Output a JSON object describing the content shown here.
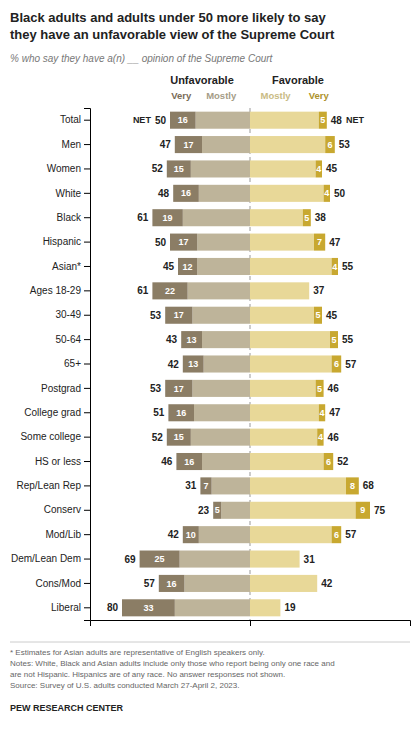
{
  "chart_data": {
    "type": "bar",
    "orientation": "horizontal",
    "stacked": true,
    "title": "Black adults and adults under 50 more likely to say\nthey have an unfavorable view of the Supreme Court",
    "subtitle": "% who say they have a(n) __ opinion of the Supreme Court",
    "annotations": [
      "Unfavorable",
      "Favorable"
    ],
    "categories": [
      "Total",
      "Men",
      "Women",
      "White",
      "Black",
      "Hispanic",
      "Asian*",
      "Ages 18-29",
      "30-49",
      "50-64",
      "65+",
      "Postgrad",
      "College grad",
      "Some college",
      "HS or less",
      "Rep/Lean Rep",
      "Conserv",
      "Mod/Lib",
      "Dem/Lean Dem",
      "Cons/Mod",
      "Liberal"
    ],
    "series": [
      {
        "name": "Very",
        "color": "#8B7D65",
        "values": [
          16,
          17,
          15,
          16,
          19,
          17,
          12,
          22,
          17,
          13,
          13,
          17,
          16,
          15,
          16,
          7,
          5,
          10,
          25,
          16,
          33
        ],
        "value_labels": [
          "16",
          "17",
          "15",
          "16",
          "19",
          "17",
          "12",
          "22",
          "17",
          "13",
          "13",
          "17",
          "16",
          "15",
          "16",
          "7",
          "5",
          "10",
          "25",
          "16",
          "33"
        ]
      },
      {
        "name": "Mostly",
        "color": "#BEB49A",
        "values": [
          34,
          30,
          37,
          32,
          42,
          33,
          33,
          39,
          36,
          30,
          29,
          36,
          35,
          37,
          30,
          24,
          18,
          32,
          44,
          41,
          47
        ],
        "value_labels": [
          null,
          null,
          null,
          null,
          null,
          null,
          null,
          null,
          null,
          null,
          null,
          null,
          null,
          null,
          null,
          null,
          null,
          null,
          null,
          null,
          null
        ]
      },
      {
        "name": "Mostly",
        "color": "#E8D898",
        "values": [
          43,
          47,
          41,
          46,
          33,
          40,
          51,
          37,
          40,
          50,
          51,
          41,
          43,
          42,
          46,
          60,
          66,
          51,
          31,
          42,
          19
        ],
        "value_labels": [
          null,
          null,
          null,
          null,
          null,
          null,
          null,
          null,
          null,
          null,
          null,
          null,
          null,
          null,
          null,
          null,
          null,
          null,
          null,
          null,
          null
        ]
      },
      {
        "name": "Very",
        "color": "#C8A830",
        "values": [
          5,
          6,
          4,
          4,
          5,
          7,
          4,
          0,
          5,
          5,
          6,
          5,
          4,
          4,
          6,
          8,
          9,
          6,
          0,
          0,
          0
        ],
        "value_labels": [
          "5",
          "6",
          "4",
          "4",
          "5",
          "7",
          "4",
          null,
          "5",
          "5",
          "6",
          "5",
          "4",
          "4",
          "6",
          "8",
          "9",
          "6",
          null,
          null,
          null
        ]
      }
    ],
    "net_unfav": [
      50,
      47,
      52,
      48,
      61,
      50,
      45,
      61,
      53,
      43,
      42,
      53,
      51,
      52,
      46,
      31,
      23,
      42,
      69,
      57,
      80
    ],
    "net_fav": [
      48,
      53,
      45,
      50,
      38,
      47,
      55,
      37,
      45,
      55,
      57,
      46,
      47,
      46,
      52,
      68,
      75,
      57,
      31,
      42,
      19
    ],
    "net_labels": [
      "NET",
      null,
      null,
      null,
      null,
      null,
      null,
      null,
      null,
      null,
      null,
      null,
      null,
      null,
      null,
      null,
      null,
      null,
      null,
      null,
      null
    ],
    "data_labels": true,
    "xlim": [
      -100,
      100
    ],
    "xticks": [
      0
    ],
    "grid": true,
    "tick_labels": "y",
    "notes": [
      "* Estimates for Asian adults are representative of English speakers only.",
      "Notes: White, Black and Asian adults include only those who report being only one race and",
      "are not Hispanic. Hispanics are of any race. No answer responses not shown.",
      "Source: Survey of U.S. adults conducted March 27-April 2, 2023."
    ],
    "source": "PEW RESEARCH CENTER"
  }
}
